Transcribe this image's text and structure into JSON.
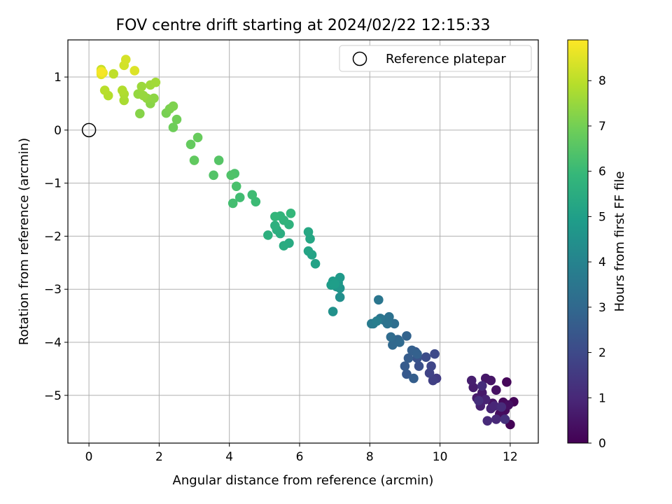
{
  "chart_data": {
    "type": "scatter",
    "title": "FOV centre drift starting at 2024/02/22 12:15:33",
    "xlabel": "Angular distance from reference (arcmin)",
    "ylabel": "Rotation from reference (arcmin)",
    "xlim": [
      -0.6,
      12.8
    ],
    "ylim": [
      -5.9,
      1.7
    ],
    "xticks": [
      0,
      2,
      4,
      6,
      8,
      10,
      12
    ],
    "xtick_labels": [
      "0",
      "2",
      "4",
      "6",
      "8",
      "10",
      "12"
    ],
    "yticks": [
      1,
      0,
      -1,
      -2,
      -3,
      -4,
      -5
    ],
    "ytick_labels": [
      "1",
      "0",
      "−1",
      "−2",
      "−3",
      "−4",
      "−5"
    ],
    "grid": true,
    "legend": {
      "placement": "top-right",
      "entries": [
        "Reference platepar"
      ]
    },
    "reference_marker": {
      "x": 0,
      "y": 0,
      "style": "open-circle",
      "color": "#000000"
    },
    "colorbar": {
      "label": "Hours from first FF file",
      "colormap": "viridis",
      "range": [
        0,
        8.9
      ],
      "ticks": [
        0,
        1,
        2,
        3,
        4,
        5,
        6,
        7,
        8
      ],
      "tick_labels": [
        "0",
        "1",
        "2",
        "3",
        "4",
        "5",
        "6",
        "7",
        "8"
      ],
      "colors": [
        "#440154",
        "#482878",
        "#3e4989",
        "#31688e",
        "#26828e",
        "#1f9e89",
        "#35b779",
        "#6ece58",
        "#b5de2b",
        "#fde725"
      ]
    },
    "series": [
      {
        "points": [
          [
            12.0,
            -5.55,
            0.05
          ],
          [
            12.1,
            -5.12,
            0.1
          ],
          [
            11.9,
            -4.75,
            0.15
          ],
          [
            11.8,
            -5.13,
            0.2
          ],
          [
            11.85,
            -5.28,
            0.25
          ],
          [
            11.7,
            -5.35,
            0.3
          ],
          [
            11.95,
            -5.18,
            0.35
          ],
          [
            11.6,
            -4.9,
            0.4
          ],
          [
            11.5,
            -5.15,
            0.45
          ],
          [
            11.45,
            -4.72,
            0.5
          ],
          [
            11.3,
            -4.68,
            0.55
          ],
          [
            11.2,
            -4.95,
            0.6
          ],
          [
            11.05,
            -5.05,
            0.65
          ],
          [
            10.95,
            -4.85,
            0.7
          ],
          [
            10.9,
            -4.72,
            0.75
          ],
          [
            11.15,
            -5.2,
            0.8
          ],
          [
            11.3,
            -5.08,
            0.85
          ],
          [
            11.45,
            -5.25,
            0.9
          ],
          [
            11.55,
            -5.2,
            0.95
          ],
          [
            11.6,
            -5.45,
            1.0
          ],
          [
            11.35,
            -5.48,
            1.05
          ],
          [
            11.75,
            -5.22,
            1.1
          ],
          [
            11.2,
            -4.82,
            1.15
          ],
          [
            11.1,
            -5.1,
            1.2
          ],
          [
            11.85,
            -5.45,
            1.25
          ],
          [
            9.9,
            -4.68,
            1.6
          ],
          [
            9.8,
            -4.72,
            1.7
          ],
          [
            9.7,
            -4.58,
            1.8
          ],
          [
            9.75,
            -4.45,
            1.9
          ],
          [
            9.85,
            -4.22,
            2.0
          ],
          [
            9.6,
            -4.28,
            2.1
          ],
          [
            9.4,
            -4.45,
            2.2
          ],
          [
            9.35,
            -4.3,
            2.3
          ],
          [
            9.3,
            -4.18,
            2.4
          ],
          [
            9.05,
            -4.6,
            2.5
          ],
          [
            9.0,
            -4.45,
            2.55
          ],
          [
            9.1,
            -4.3,
            2.6
          ],
          [
            9.25,
            -4.68,
            2.65
          ],
          [
            9.2,
            -4.15,
            2.7
          ],
          [
            9.35,
            -4.22,
            2.75
          ],
          [
            9.05,
            -3.88,
            2.8
          ],
          [
            8.8,
            -3.95,
            2.9
          ],
          [
            8.65,
            -4.05,
            3.0
          ],
          [
            8.85,
            -4.0,
            3.05
          ],
          [
            8.6,
            -3.9,
            3.1
          ],
          [
            8.7,
            -3.65,
            3.2
          ],
          [
            8.55,
            -3.52,
            3.3
          ],
          [
            8.4,
            -3.58,
            3.35
          ],
          [
            8.5,
            -3.65,
            3.4
          ],
          [
            8.3,
            -3.55,
            3.45
          ],
          [
            8.25,
            -3.2,
            3.5
          ],
          [
            8.1,
            -3.65,
            3.6
          ],
          [
            8.05,
            -3.65,
            3.7
          ],
          [
            8.2,
            -3.6,
            3.8
          ],
          [
            7.15,
            -3.15,
            4.4
          ],
          [
            6.95,
            -3.42,
            4.5
          ],
          [
            7.15,
            -2.98,
            4.6
          ],
          [
            7.05,
            -2.95,
            4.7
          ],
          [
            7.1,
            -2.88,
            4.75
          ],
          [
            7.15,
            -2.78,
            4.8
          ],
          [
            6.95,
            -2.85,
            4.85
          ],
          [
            6.9,
            -2.92,
            4.9
          ],
          [
            7.0,
            -2.9,
            4.95
          ],
          [
            6.45,
            -2.52,
            5.1
          ],
          [
            6.35,
            -2.35,
            5.15
          ],
          [
            6.25,
            -2.28,
            5.2
          ],
          [
            6.3,
            -2.05,
            5.25
          ],
          [
            6.25,
            -1.92,
            5.3
          ],
          [
            5.7,
            -2.13,
            5.4
          ],
          [
            5.55,
            -2.18,
            5.45
          ],
          [
            5.45,
            -1.95,
            5.5
          ],
          [
            5.35,
            -1.88,
            5.55
          ],
          [
            5.1,
            -1.98,
            5.6
          ],
          [
            5.3,
            -1.8,
            5.65
          ],
          [
            5.7,
            -1.78,
            5.7
          ],
          [
            5.55,
            -1.7,
            5.75
          ],
          [
            5.45,
            -1.62,
            5.8
          ],
          [
            5.3,
            -1.63,
            5.85
          ],
          [
            5.75,
            -1.57,
            5.9
          ],
          [
            4.75,
            -1.35,
            6.05
          ],
          [
            4.65,
            -1.22,
            6.1
          ],
          [
            4.3,
            -1.27,
            6.15
          ],
          [
            4.1,
            -1.38,
            6.2
          ],
          [
            4.2,
            -1.06,
            6.3
          ],
          [
            4.15,
            -0.82,
            6.35
          ],
          [
            4.05,
            -0.85,
            6.4
          ],
          [
            3.55,
            -0.85,
            6.45
          ],
          [
            3.7,
            -0.57,
            6.5
          ],
          [
            3.0,
            -0.57,
            6.7
          ],
          [
            2.9,
            -0.27,
            6.75
          ],
          [
            3.1,
            -0.14,
            6.8
          ],
          [
            2.4,
            0.05,
            6.9
          ],
          [
            2.5,
            0.2,
            6.95
          ],
          [
            2.2,
            0.32,
            7.05
          ],
          [
            2.3,
            0.4,
            7.1
          ],
          [
            2.4,
            0.45,
            7.15
          ],
          [
            1.45,
            0.31,
            7.25
          ],
          [
            1.75,
            0.5,
            7.3
          ],
          [
            1.85,
            0.6,
            7.35
          ],
          [
            1.65,
            0.6,
            7.4
          ],
          [
            1.4,
            0.68,
            7.45
          ],
          [
            1.55,
            0.65,
            7.5
          ],
          [
            1.5,
            0.82,
            7.55
          ],
          [
            1.75,
            0.85,
            7.6
          ],
          [
            1.9,
            0.9,
            7.65
          ],
          [
            1.0,
            0.56,
            7.75
          ],
          [
            1.0,
            0.68,
            7.8
          ],
          [
            0.95,
            0.75,
            7.85
          ],
          [
            0.55,
            0.65,
            7.9
          ],
          [
            0.45,
            0.75,
            7.95
          ],
          [
            0.7,
            1.06,
            8.05
          ],
          [
            0.35,
            1.08,
            8.1
          ],
          [
            0.35,
            1.14,
            8.15
          ],
          [
            0.35,
            1.12,
            8.2
          ],
          [
            1.0,
            1.22,
            8.3
          ],
          [
            1.05,
            1.33,
            8.35
          ],
          [
            1.3,
            1.12,
            8.45
          ],
          [
            0.35,
            1.05,
            8.5
          ],
          [
            0.4,
            1.08,
            8.65
          ],
          [
            0.35,
            1.1,
            8.8
          ]
        ]
      }
    ]
  }
}
